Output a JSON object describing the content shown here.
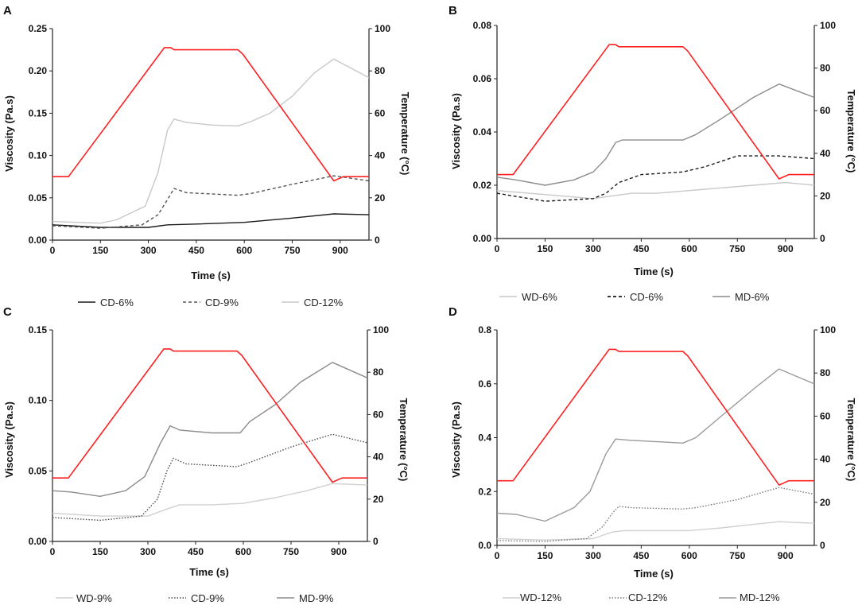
{
  "figure": {
    "temperature_color": "#ff2020",
    "axes_color": "#222222"
  },
  "chart_data": [
    {
      "type": "line",
      "panel_label": "A",
      "xlabel": "Time (s)",
      "ylabel": "Viscosity (Pa.s)",
      "y2label": "Temperature (°C)",
      "xlim": [
        0,
        990
      ],
      "ylim": [
        0,
        0.25
      ],
      "y2lim": [
        0,
        100
      ],
      "xticks": [
        0,
        150,
        300,
        450,
        600,
        750,
        900
      ],
      "yticks": [
        "0.00",
        "0.05",
        "0.10",
        "0.15",
        "0.20",
        "0.25"
      ],
      "y2ticks": [
        "0",
        "20",
        "40",
        "60",
        "80",
        "100"
      ],
      "temperature": {
        "name": "Temperature",
        "color": "#ff2020",
        "points": [
          [
            0,
            30
          ],
          [
            50,
            30
          ],
          [
            350,
            91
          ],
          [
            370,
            91
          ],
          [
            380,
            90
          ],
          [
            580,
            90
          ],
          [
            595,
            88
          ],
          [
            880,
            28
          ],
          [
            910,
            30
          ],
          [
            990,
            30
          ]
        ]
      },
      "series": [
        {
          "name": "CD-6%",
          "color": "#1a1a1a",
          "dash": "solid",
          "points": [
            [
              0,
              0.018
            ],
            [
              150,
              0.015
            ],
            [
              300,
              0.015
            ],
            [
              360,
              0.018
            ],
            [
              450,
              0.019
            ],
            [
              600,
              0.021
            ],
            [
              750,
              0.026
            ],
            [
              880,
              0.031
            ],
            [
              990,
              0.03
            ]
          ]
        },
        {
          "name": "CD-9%",
          "color": "#555555",
          "dash": "dashed",
          "points": [
            [
              0,
              0.017
            ],
            [
              150,
              0.014
            ],
            [
              280,
              0.018
            ],
            [
              330,
              0.03
            ],
            [
              360,
              0.048
            ],
            [
              380,
              0.061
            ],
            [
              420,
              0.056
            ],
            [
              580,
              0.053
            ],
            [
              620,
              0.055
            ],
            [
              750,
              0.066
            ],
            [
              880,
              0.076
            ],
            [
              990,
              0.07
            ]
          ]
        },
        {
          "name": "CD-12%",
          "color": "#c8c8c8",
          "dash": "solid",
          "points": [
            [
              0,
              0.022
            ],
            [
              150,
              0.02
            ],
            [
              200,
              0.024
            ],
            [
              290,
              0.04
            ],
            [
              330,
              0.08
            ],
            [
              360,
              0.13
            ],
            [
              380,
              0.143
            ],
            [
              420,
              0.139
            ],
            [
              500,
              0.136
            ],
            [
              580,
              0.135
            ],
            [
              620,
              0.14
            ],
            [
              680,
              0.15
            ],
            [
              750,
              0.17
            ],
            [
              820,
              0.198
            ],
            [
              880,
              0.214
            ],
            [
              990,
              0.192
            ]
          ]
        }
      ],
      "legend": [
        "CD-6%",
        "CD-9%",
        "CD-12%"
      ]
    },
    {
      "type": "line",
      "panel_label": "B",
      "xlabel": "Time (s)",
      "ylabel": "Viscosity (Pa.s)",
      "y2label": "Temperature (°C)",
      "xlim": [
        0,
        990
      ],
      "ylim": [
        0,
        0.08
      ],
      "y2lim": [
        0,
        100
      ],
      "xticks": [
        0,
        150,
        300,
        450,
        600,
        750,
        900
      ],
      "yticks": [
        "0.00",
        "0.02",
        "0.04",
        "0.06",
        "0.08"
      ],
      "y2ticks": [
        "0",
        "20",
        "40",
        "60",
        "80",
        "100"
      ],
      "temperature": {
        "name": "Temperature",
        "color": "#ff2020",
        "points": [
          [
            0,
            30
          ],
          [
            50,
            30
          ],
          [
            350,
            91
          ],
          [
            370,
            91
          ],
          [
            380,
            90
          ],
          [
            580,
            90
          ],
          [
            595,
            88
          ],
          [
            880,
            28
          ],
          [
            910,
            30
          ],
          [
            990,
            30
          ]
        ]
      },
      "series": [
        {
          "name": "WD-6%",
          "color": "#c8c8c8",
          "dash": "solid",
          "points": [
            [
              0,
              0.018
            ],
            [
              100,
              0.017
            ],
            [
              200,
              0.016
            ],
            [
              300,
              0.015
            ],
            [
              360,
              0.016
            ],
            [
              420,
              0.017
            ],
            [
              500,
              0.017
            ],
            [
              600,
              0.018
            ],
            [
              700,
              0.019
            ],
            [
              800,
              0.02
            ],
            [
              900,
              0.021
            ],
            [
              990,
              0.02
            ]
          ]
        },
        {
          "name": "CD-6%",
          "color": "#1a1a1a",
          "dash": "dashed",
          "points": [
            [
              0,
              0.017
            ],
            [
              150,
              0.014
            ],
            [
              300,
              0.015
            ],
            [
              340,
              0.017
            ],
            [
              380,
              0.021
            ],
            [
              450,
              0.024
            ],
            [
              580,
              0.025
            ],
            [
              650,
              0.027
            ],
            [
              750,
              0.031
            ],
            [
              880,
              0.031
            ],
            [
              990,
              0.03
            ]
          ]
        },
        {
          "name": "MD-6%",
          "color": "#8c8c8c",
          "dash": "solid",
          "points": [
            [
              0,
              0.023
            ],
            [
              60,
              0.022
            ],
            [
              150,
              0.02
            ],
            [
              240,
              0.022
            ],
            [
              300,
              0.025
            ],
            [
              340,
              0.03
            ],
            [
              370,
              0.036
            ],
            [
              390,
              0.037
            ],
            [
              450,
              0.037
            ],
            [
              580,
              0.037
            ],
            [
              620,
              0.039
            ],
            [
              700,
              0.045
            ],
            [
              800,
              0.053
            ],
            [
              880,
              0.058
            ],
            [
              990,
              0.053
            ]
          ]
        }
      ],
      "legend": [
        "WD-6%",
        "CD-6%",
        "MD-6%"
      ]
    },
    {
      "type": "line",
      "panel_label": "C",
      "xlabel": "Time (s)",
      "ylabel": "Viscosity (Pa.s)",
      "y2label": "Temperature (°C)",
      "xlim": [
        0,
        990
      ],
      "ylim": [
        0,
        0.15
      ],
      "y2lim": [
        0,
        100
      ],
      "xticks": [
        0,
        150,
        300,
        450,
        600,
        750,
        900
      ],
      "yticks": [
        "0.00",
        "0.05",
        "0.10",
        "0.15"
      ],
      "y2ticks": [
        "0",
        "20",
        "40",
        "60",
        "80",
        "100"
      ],
      "temperature": {
        "name": "Temperature",
        "color": "#ff2020",
        "points": [
          [
            0,
            30
          ],
          [
            50,
            30
          ],
          [
            350,
            91
          ],
          [
            370,
            91
          ],
          [
            380,
            90
          ],
          [
            580,
            90
          ],
          [
            595,
            88
          ],
          [
            880,
            28
          ],
          [
            910,
            30
          ],
          [
            990,
            30
          ]
        ]
      },
      "series": [
        {
          "name": "WD-9%",
          "color": "#d0d0d0",
          "dash": "solid",
          "points": [
            [
              0,
              0.02
            ],
            [
              150,
              0.018
            ],
            [
              300,
              0.018
            ],
            [
              360,
              0.023
            ],
            [
              400,
              0.026
            ],
            [
              500,
              0.026
            ],
            [
              600,
              0.027
            ],
            [
              700,
              0.031
            ],
            [
              800,
              0.036
            ],
            [
              880,
              0.041
            ],
            [
              990,
              0.04
            ]
          ]
        },
        {
          "name": "CD-9%",
          "color": "#4a4a4a",
          "dash": "dotted",
          "points": [
            [
              0,
              0.017
            ],
            [
              150,
              0.015
            ],
            [
              280,
              0.018
            ],
            [
              330,
              0.03
            ],
            [
              360,
              0.05
            ],
            [
              380,
              0.059
            ],
            [
              420,
              0.055
            ],
            [
              580,
              0.053
            ],
            [
              620,
              0.056
            ],
            [
              750,
              0.067
            ],
            [
              880,
              0.076
            ],
            [
              990,
              0.07
            ]
          ]
        },
        {
          "name": "MD-9%",
          "color": "#8c8c8c",
          "dash": "solid",
          "points": [
            [
              0,
              0.036
            ],
            [
              60,
              0.035
            ],
            [
              150,
              0.032
            ],
            [
              230,
              0.036
            ],
            [
              290,
              0.046
            ],
            [
              340,
              0.07
            ],
            [
              370,
              0.082
            ],
            [
              400,
              0.079
            ],
            [
              500,
              0.077
            ],
            [
              590,
              0.077
            ],
            [
              620,
              0.085
            ],
            [
              700,
              0.097
            ],
            [
              780,
              0.113
            ],
            [
              880,
              0.127
            ],
            [
              990,
              0.116
            ]
          ]
        }
      ],
      "legend": [
        "WD-9%",
        "CD-9%",
        "MD-9%"
      ]
    },
    {
      "type": "line",
      "panel_label": "D",
      "xlabel": "Time (s)",
      "ylabel": "Viscosity (Pa.s)",
      "y2label": "Temperature (°C)",
      "xlim": [
        0,
        990
      ],
      "ylim": [
        0,
        0.8
      ],
      "y2lim": [
        0,
        100
      ],
      "xticks": [
        0,
        150,
        300,
        450,
        600,
        750,
        900
      ],
      "yticks": [
        "0.0",
        "0.2",
        "0.4",
        "0.6",
        "0.8"
      ],
      "y2ticks": [
        "0",
        "20",
        "40",
        "60",
        "80",
        "100"
      ],
      "temperature": {
        "name": "Temperature",
        "color": "#ff2020",
        "points": [
          [
            0,
            30
          ],
          [
            50,
            30
          ],
          [
            350,
            91
          ],
          [
            370,
            91
          ],
          [
            380,
            90
          ],
          [
            580,
            90
          ],
          [
            595,
            88
          ],
          [
            880,
            28
          ],
          [
            910,
            30
          ],
          [
            990,
            30
          ]
        ]
      },
      "series": [
        {
          "name": "WD-12%",
          "color": "#d0d0d0",
          "dash": "solid",
          "points": [
            [
              0,
              0.025
            ],
            [
              150,
              0.02
            ],
            [
              300,
              0.025
            ],
            [
              360,
              0.05
            ],
            [
              400,
              0.055
            ],
            [
              600,
              0.055
            ],
            [
              700,
              0.065
            ],
            [
              800,
              0.078
            ],
            [
              880,
              0.088
            ],
            [
              990,
              0.082
            ]
          ]
        },
        {
          "name": "CD-12%",
          "color": "#7a7a7a",
          "dash": "dotted",
          "points": [
            [
              0,
              0.018
            ],
            [
              150,
              0.015
            ],
            [
              280,
              0.025
            ],
            [
              330,
              0.07
            ],
            [
              360,
              0.12
            ],
            [
              380,
              0.145
            ],
            [
              420,
              0.14
            ],
            [
              580,
              0.135
            ],
            [
              620,
              0.14
            ],
            [
              750,
              0.17
            ],
            [
              880,
              0.215
            ],
            [
              990,
              0.19
            ]
          ]
        },
        {
          "name": "MD-12%",
          "color": "#9a9a9a",
          "dash": "solid",
          "points": [
            [
              0,
              0.12
            ],
            [
              60,
              0.115
            ],
            [
              150,
              0.09
            ],
            [
              240,
              0.14
            ],
            [
              290,
              0.2
            ],
            [
              340,
              0.34
            ],
            [
              370,
              0.395
            ],
            [
              420,
              0.39
            ],
            [
              500,
              0.385
            ],
            [
              580,
              0.38
            ],
            [
              620,
              0.4
            ],
            [
              700,
              0.48
            ],
            [
              800,
              0.58
            ],
            [
              880,
              0.655
            ],
            [
              990,
              0.6
            ]
          ]
        }
      ],
      "legend": [
        "WD-12%",
        "CD-12%",
        "MD-12%"
      ]
    }
  ]
}
